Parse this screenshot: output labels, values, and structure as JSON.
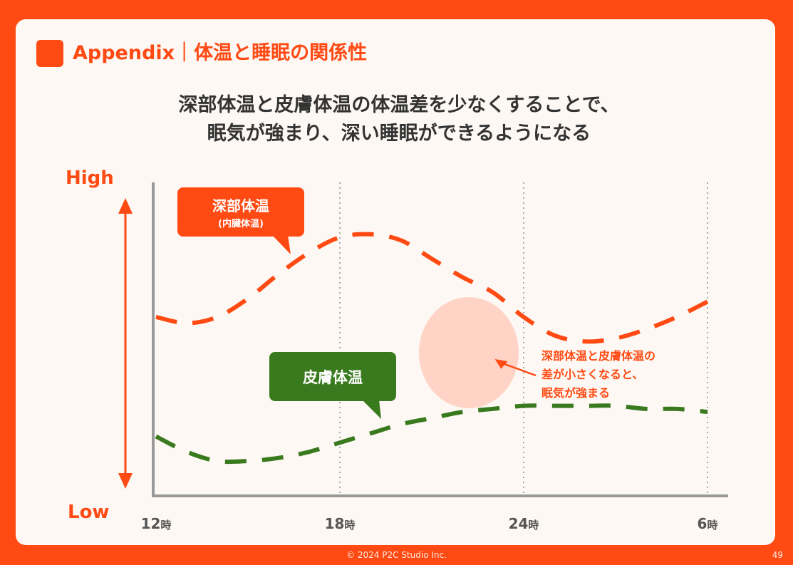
{
  "header": {
    "title": "Appendix｜体温と睡眠の関係性"
  },
  "subtitle": {
    "line1": "深部体温と皮膚体温の体温差を少なくすることで、",
    "line2": "眠気が強まり、深い睡眠ができるようになる"
  },
  "footer": {
    "copyright": "© 2024 P2C Studio Inc.",
    "page_number": "49"
  },
  "colors": {
    "accent": "#ff4a14",
    "core": "#ff4a14",
    "skin": "#3a7a1f",
    "highlight": "#ffd4c6",
    "axis": "#999999"
  },
  "chart_data": {
    "type": "line",
    "title": "",
    "xlabel": "",
    "ylabel": "",
    "y_high_label": "High",
    "y_low_label": "Low",
    "x_ticks": [
      {
        "value": 0,
        "num": "12",
        "unit": "時"
      },
      {
        "value": 6,
        "num": "18",
        "unit": "時"
      },
      {
        "value": 12,
        "num": "24",
        "unit": "時"
      },
      {
        "value": 18,
        "num": "6",
        "unit": "時"
      }
    ],
    "xlim": [
      0,
      18
    ],
    "ylim": [
      0,
      100
    ],
    "grid_x": true,
    "series": [
      {
        "name": "深部体温",
        "sub_label": "(内臓体温)",
        "color": "#ff4a14",
        "x": [
          0,
          1,
          2,
          3,
          4,
          5,
          6,
          7,
          8,
          9,
          10,
          11,
          12,
          13,
          14,
          15,
          16,
          17,
          18
        ],
        "values": [
          57,
          55,
          57,
          63,
          71,
          78,
          83,
          84,
          82,
          76,
          70,
          65,
          57,
          51,
          49,
          50,
          53,
          57,
          62
        ]
      },
      {
        "name": "皮膚体温",
        "color": "#3a7a1f",
        "x": [
          0,
          1,
          2,
          3,
          4,
          5,
          6,
          7,
          8,
          9,
          10,
          11,
          12,
          13,
          14,
          15,
          16,
          17,
          18
        ],
        "values": [
          18,
          13,
          10,
          10,
          11,
          13,
          16,
          19,
          22,
          24,
          26,
          27,
          28,
          28,
          28,
          28,
          27,
          27,
          26
        ]
      }
    ],
    "annotation": {
      "lines": [
        "深部体温と皮膚体温の",
        "差が小さくなると、",
        "眠気が強まる"
      ],
      "x": 10,
      "y": 38
    }
  }
}
